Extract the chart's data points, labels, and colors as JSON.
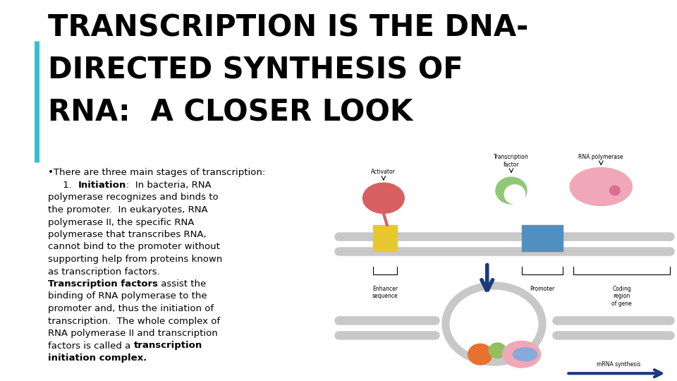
{
  "title_line1": "TRANSCRIPTION IS THE DNA-",
  "title_line2": "DIRECTED SYNTHESIS OF",
  "title_line3": "RNA:  A CLOSER LOOK",
  "title_fontsize": 30,
  "title_color": "#000000",
  "accent_bar_color": "#3bbcd4",
  "body_fontsize": 9.5,
  "body_color": "#000000",
  "background_color": "#ffffff",
  "bullet_text": "•There are three main stages of transcription:"
}
